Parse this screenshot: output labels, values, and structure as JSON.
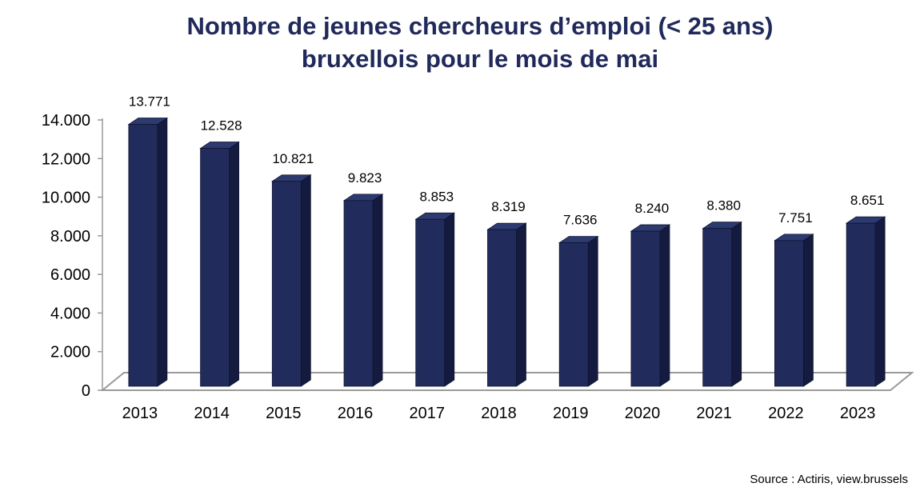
{
  "chart_data": {
    "type": "bar",
    "title_line1": "Nombre de jeunes chercheurs d’emploi (< 25 ans)",
    "title_line2": "bruxellois pour le mois de mai",
    "categories": [
      "2013",
      "2014",
      "2015",
      "2016",
      "2017",
      "2018",
      "2019",
      "2020",
      "2021",
      "2022",
      "2023"
    ],
    "values": [
      13771,
      12528,
      10821,
      9823,
      8853,
      8319,
      7636,
      8240,
      8380,
      7751,
      8651
    ],
    "value_labels": [
      "13.771",
      "12.528",
      "10.821",
      "9.823",
      "8.853",
      "8.319",
      "7.636",
      "8.240",
      "8.380",
      "7.751",
      "8.651"
    ],
    "y_ticks": [
      0,
      2000,
      4000,
      6000,
      8000,
      10000,
      12000,
      14000
    ],
    "y_tick_labels": [
      "0",
      "2.000",
      "4.000",
      "6.000",
      "8.000",
      "10.000",
      "12.000",
      "14.000"
    ],
    "ylim": [
      0,
      14000
    ],
    "xlabel": "",
    "ylabel": "",
    "grid": false,
    "style": "3d-bar",
    "colors": {
      "bar_front": "#222c5c",
      "bar_top": "#2d3a70",
      "bar_side": "#151b3f",
      "floor": "#9a9a9a",
      "title": "#20295a"
    }
  },
  "source": "Source : Actiris, view.brussels"
}
